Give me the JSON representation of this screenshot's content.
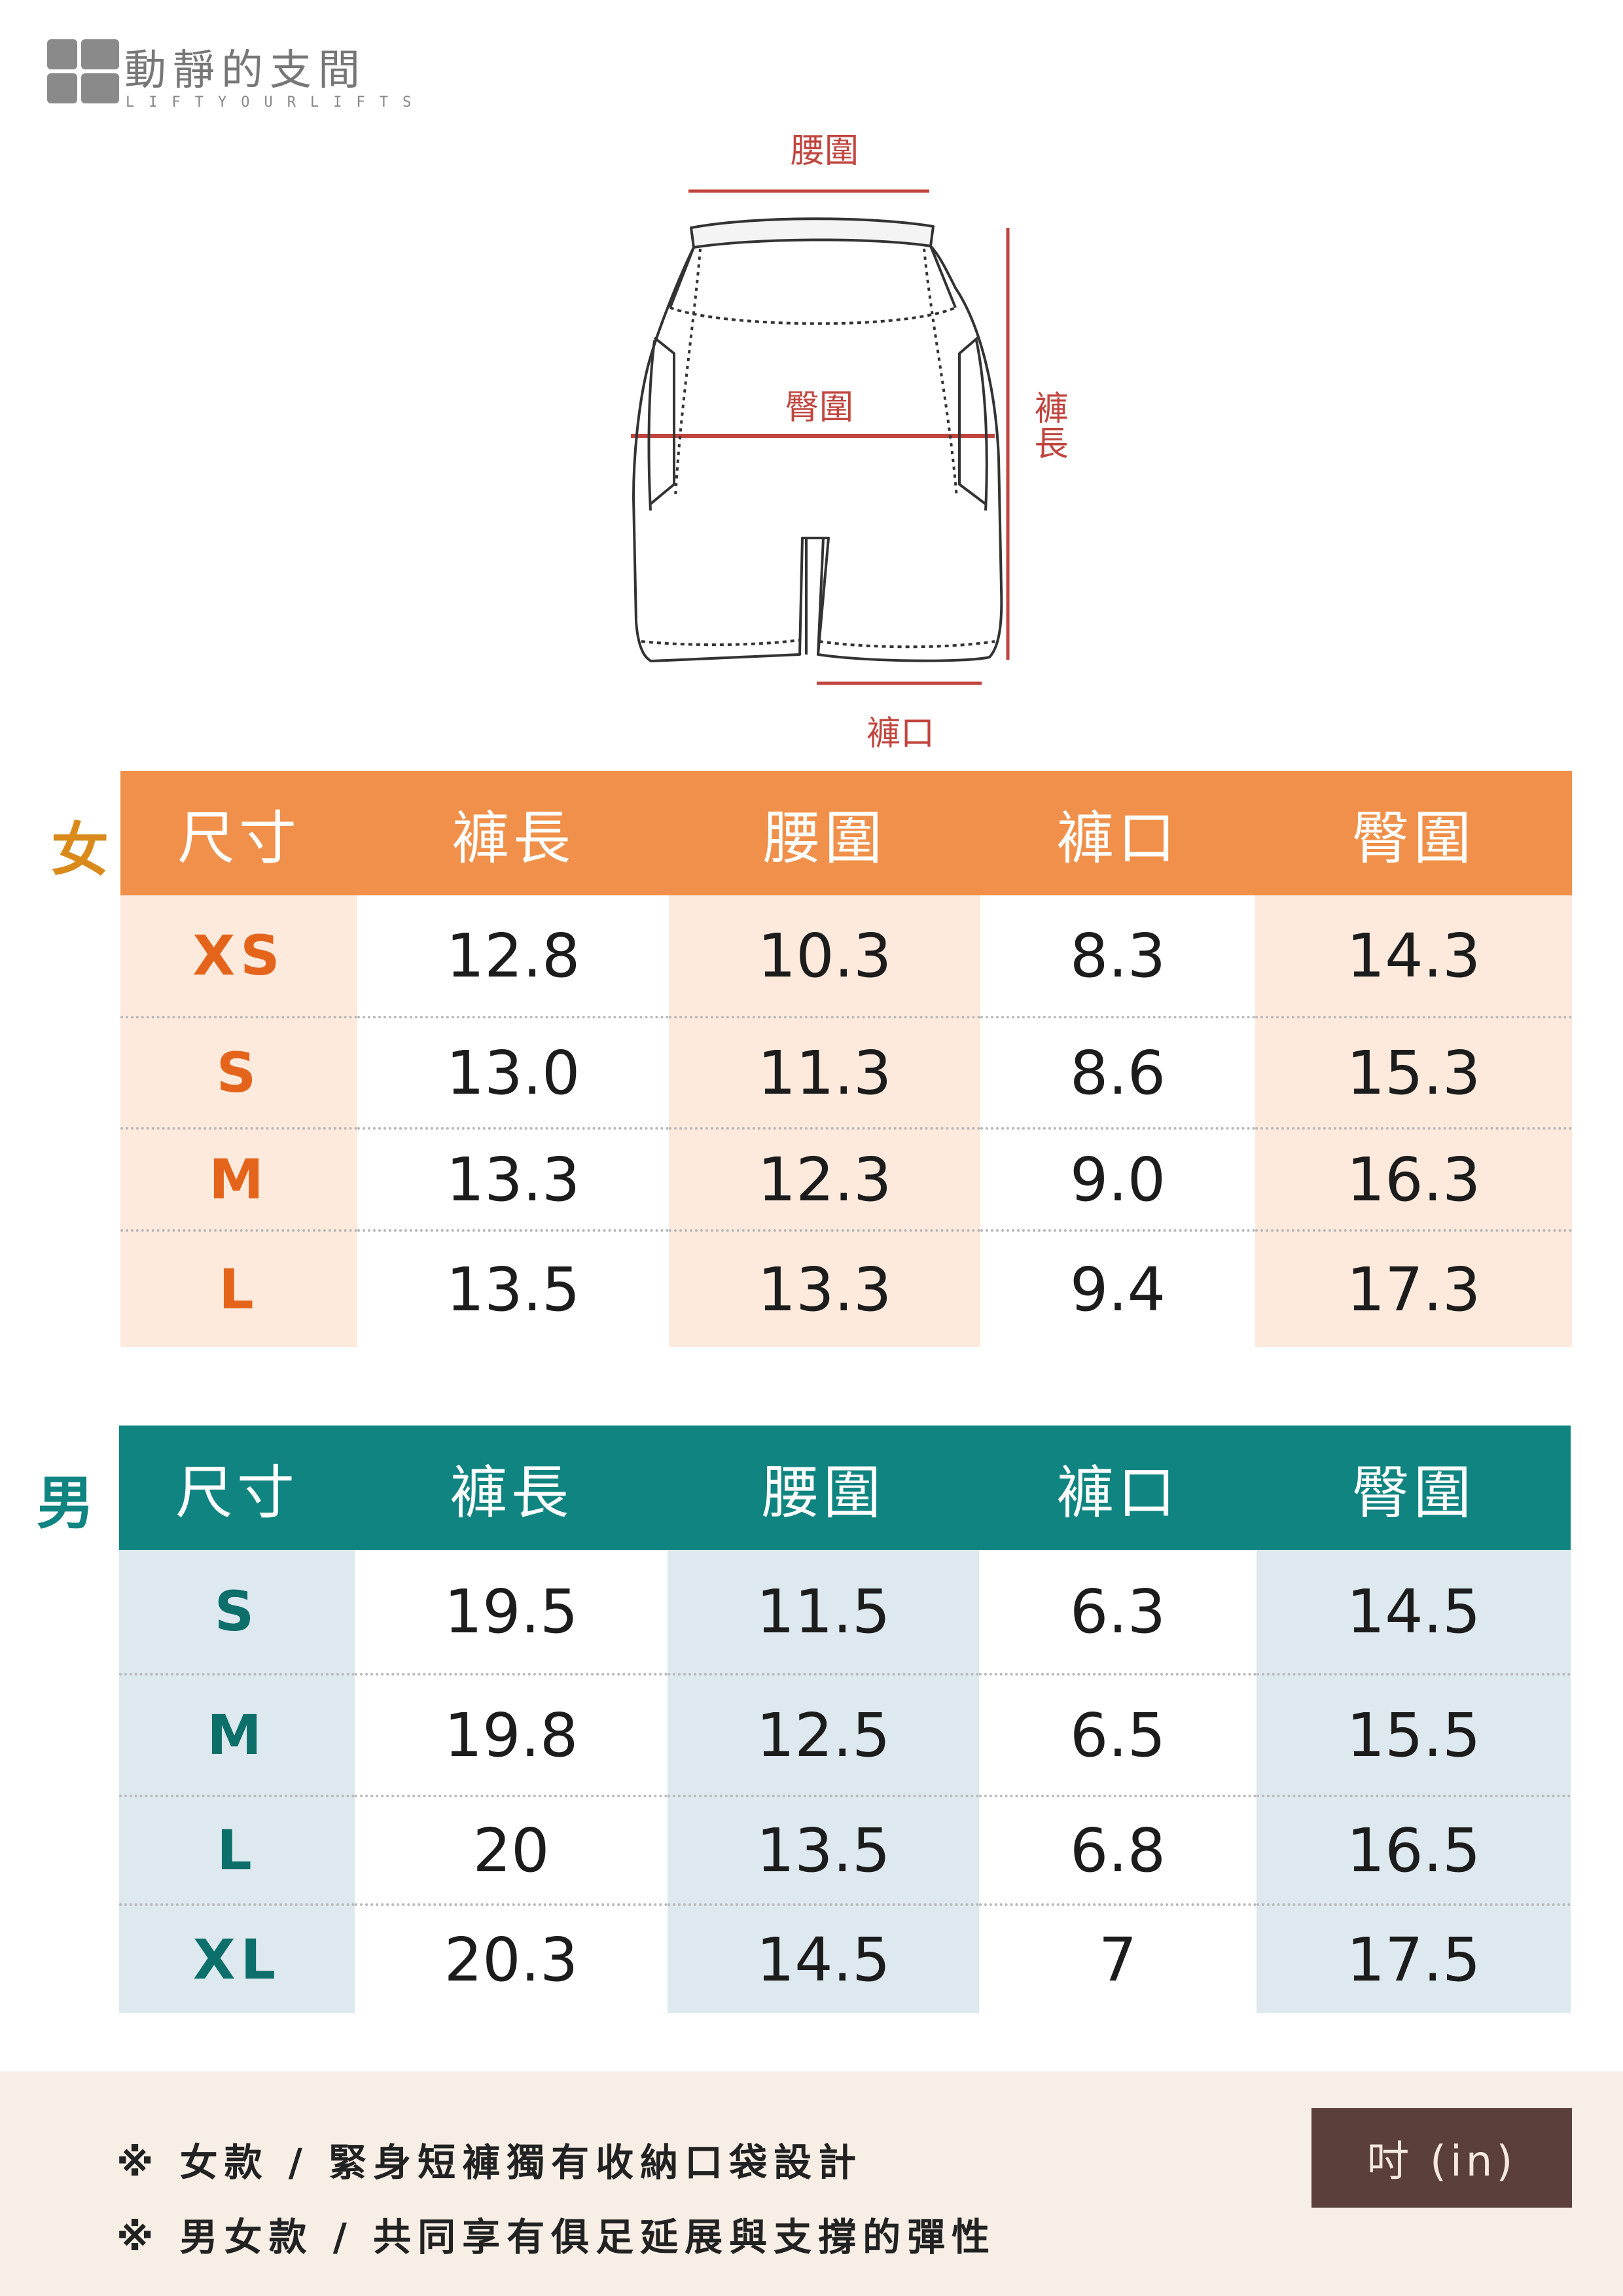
{
  "brand": {
    "title": "動靜的支間",
    "subtitle": "LIFTYOURLIFTS"
  },
  "diagram": {
    "waist_label": "腰圍",
    "hip_label": "臀圍",
    "length_label": "褲長",
    "leg_label": "褲口",
    "colors": {
      "annotation": "#c0453e",
      "line": "#c0453e"
    }
  },
  "women": {
    "section_label": "女",
    "headers": [
      "尺寸",
      "褲長",
      "腰圍",
      "褲口",
      "臀圍"
    ],
    "rows": [
      [
        "XS",
        "12.8",
        "10.3",
        "8.3",
        "14.3"
      ],
      [
        "S",
        "13.0",
        "11.3",
        "8.6",
        "15.3"
      ],
      [
        "M",
        "13.3",
        "12.3",
        "9.0",
        "16.3"
      ],
      [
        "L",
        "13.5",
        "13.3",
        "9.4",
        "17.3"
      ]
    ],
    "colors": {
      "header": "#f0904a",
      "tint": "#fdeadd",
      "size_text": "#e5641c",
      "label": "#d98a1a"
    }
  },
  "men": {
    "section_label": "男",
    "headers": [
      "尺寸",
      "褲長",
      "腰圍",
      "褲口",
      "臀圍"
    ],
    "rows": [
      [
        "S",
        "19.5",
        "11.5",
        "6.3",
        "14.5"
      ],
      [
        "M",
        "19.8",
        "12.5",
        "6.5",
        "15.5"
      ],
      [
        "L",
        "20",
        "13.5",
        "6.8",
        "16.5"
      ],
      [
        "XL",
        "20.3",
        "14.5",
        "7",
        "17.5"
      ]
    ],
    "colors": {
      "header": "#0f8480",
      "tint": "#dde8ef",
      "size_text": "#0c6f6a",
      "label": "#0f8480"
    }
  },
  "footer": {
    "notes": [
      "※  女款 /   緊身短褲獨有收納口袋設計",
      "※  男女款 /   共同享有俱足延展與支撐的彈性"
    ],
    "unit_button": "吋 (in)",
    "colors": {
      "background": "#f7eee6",
      "button": "#5b3f3a"
    }
  }
}
